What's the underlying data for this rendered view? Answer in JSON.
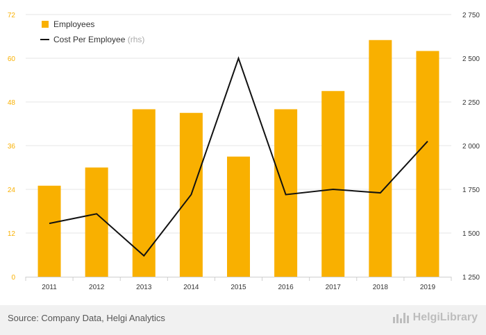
{
  "chart_data": {
    "type": "bar+line",
    "categories": [
      "2011",
      "2012",
      "2013",
      "2014",
      "2015",
      "2016",
      "2017",
      "2018",
      "2019"
    ],
    "series": [
      {
        "name": "Employees",
        "type": "bar",
        "axis": "left",
        "color": "#f9b000",
        "values": [
          25,
          30,
          46,
          45,
          33,
          46,
          51,
          65,
          62
        ]
      },
      {
        "name": "Cost Per Employee",
        "type": "line",
        "axis": "right",
        "color": "#111111",
        "values": [
          1555,
          1610,
          1370,
          1720,
          2500,
          1720,
          1750,
          1730,
          2025
        ]
      }
    ],
    "left_axis": {
      "min": 0,
      "max": 72,
      "ticks": [
        0,
        12,
        24,
        36,
        48,
        60,
        72
      ],
      "tick_color": "#f9b000"
    },
    "right_axis": {
      "min": 1250,
      "max": 2750,
      "ticks": [
        "1 250",
        "1 500",
        "1 750",
        "2 000",
        "2 250",
        "2 500",
        "2 750"
      ]
    },
    "legend": [
      {
        "label": "Employees",
        "marker": "square",
        "suffix": ""
      },
      {
        "label": "Cost Per Employee",
        "marker": "line",
        "suffix": "(rhs)"
      }
    ],
    "grid": true
  },
  "footer": {
    "source": "Source: Company Data, Helgi Analytics",
    "brand": "HelgiLibrary"
  },
  "colors": {
    "accent": "#f9b000",
    "line": "#111111",
    "grid": "#e6e6e6"
  }
}
